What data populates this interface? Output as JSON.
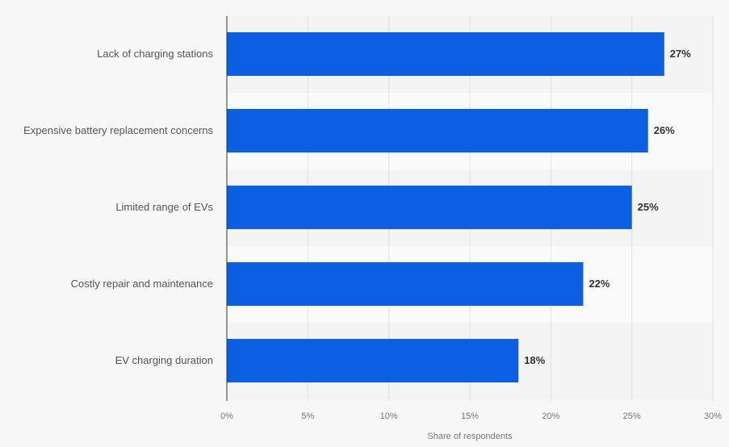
{
  "chart_data": {
    "type": "bar",
    "orientation": "horizontal",
    "categories": [
      "Lack of charging stations",
      "Expensive battery replacement concerns",
      "Limited range of EVs",
      "Costly repair and maintenance",
      "EV charging duration"
    ],
    "values": [
      27,
      26,
      25,
      22,
      18
    ],
    "data_labels": [
      "27%",
      "26%",
      "25%",
      "22%",
      "18%"
    ],
    "x_ticks": [
      0,
      5,
      10,
      15,
      20,
      25,
      30
    ],
    "x_tick_labels": [
      "0%",
      "5%",
      "10%",
      "15%",
      "20%",
      "25%",
      "30%"
    ],
    "xlabel": "Share of respondents",
    "ylabel": "",
    "xlim": [
      0,
      30
    ],
    "grid": true,
    "legend": "none",
    "colors": {
      "bar": "#0b5fe3",
      "band_a": "#f4f4f4",
      "band_b": "#fafafa",
      "grid": "#e2e2e2",
      "axis": "#333333"
    }
  }
}
